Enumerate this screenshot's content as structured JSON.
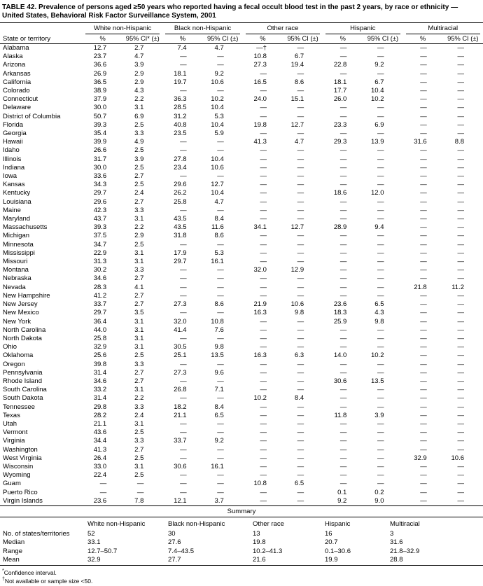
{
  "title": "TABLE 42. Prevalence of persons aged ≥50 years who reported having a fecal occult blood test in the past 2 years, by race or ethnicity — United States, Behavioral Risk Factor Surveillance System, 2001",
  "table": {
    "row_header": "State or territory",
    "groups": [
      {
        "label": "White non-Hispanic",
        "pct_header": "%",
        "ci_header": "95% CI* (±)"
      },
      {
        "label": "Black non-Hispanic",
        "pct_header": "%",
        "ci_header": "95% CI (±)"
      },
      {
        "label": "Other race",
        "pct_header": "%",
        "ci_header": "95% CI (±)"
      },
      {
        "label": "Hispanic",
        "pct_header": "%",
        "ci_header": "95% CI (±)"
      },
      {
        "label": "Multiracial",
        "pct_header": "%",
        "ci_header": "95% CI (±)"
      }
    ],
    "rows": [
      {
        "state": "Alabama",
        "values": [
          "12.7",
          "2.7",
          "7.4",
          "4.7",
          "—†",
          "—",
          "—",
          "—",
          "—",
          "—"
        ]
      },
      {
        "state": "Alaska",
        "values": [
          "23.7",
          "4.7",
          "—",
          "—",
          "10.8",
          "6.7",
          "—",
          "—",
          "—",
          "—"
        ]
      },
      {
        "state": "Arizona",
        "values": [
          "36.6",
          "3.9",
          "—",
          "—",
          "27.3",
          "19.4",
          "22.8",
          "9.2",
          "—",
          "—"
        ]
      },
      {
        "state": "Arkansas",
        "values": [
          "26.9",
          "2.9",
          "18.1",
          "9.2",
          "—",
          "—",
          "—",
          "—",
          "—",
          "—"
        ]
      },
      {
        "state": "California",
        "values": [
          "36.5",
          "2.9",
          "19.7",
          "10.6",
          "16.5",
          "8.6",
          "18.1",
          "6.7",
          "—",
          "—"
        ]
      },
      {
        "state": "Colorado",
        "values": [
          "38.9",
          "4.3",
          "—",
          "—",
          "—",
          "—",
          "17.7",
          "10.4",
          "—",
          "—"
        ]
      },
      {
        "state": "Connecticut",
        "values": [
          "37.9",
          "2.2",
          "36.3",
          "10.2",
          "24.0",
          "15.1",
          "26.0",
          "10.2",
          "—",
          "—"
        ]
      },
      {
        "state": "Delaware",
        "values": [
          "30.0",
          "3.1",
          "28.5",
          "10.4",
          "—",
          "—",
          "—",
          "—",
          "—",
          "—"
        ]
      },
      {
        "state": "District of Columbia",
        "values": [
          "50.7",
          "6.9",
          "31.2",
          "5.3",
          "—",
          "—",
          "—",
          "—",
          "—",
          "—"
        ]
      },
      {
        "state": "Florida",
        "values": [
          "39.3",
          "2.5",
          "40.8",
          "10.4",
          "19.8",
          "12.7",
          "23.3",
          "6.9",
          "—",
          "—"
        ]
      },
      {
        "state": "Georgia",
        "values": [
          "35.4",
          "3.3",
          "23.5",
          "5.9",
          "—",
          "—",
          "—",
          "—",
          "—",
          "—"
        ]
      },
      {
        "state": "Hawaii",
        "values": [
          "39.9",
          "4.9",
          "—",
          "—",
          "41.3",
          "4.7",
          "29.3",
          "13.9",
          "31.6",
          "8.8"
        ]
      },
      {
        "state": "Idaho",
        "values": [
          "26.6",
          "2.5",
          "—",
          "—",
          "—",
          "—",
          "—",
          "—",
          "—",
          "—"
        ]
      },
      {
        "state": "Illinois",
        "values": [
          "31.7",
          "3.9",
          "27.8",
          "10.4",
          "—",
          "—",
          "—",
          "—",
          "—",
          "—"
        ]
      },
      {
        "state": "Indiana",
        "values": [
          "30.0",
          "2.5",
          "23.4",
          "10.6",
          "—",
          "—",
          "—",
          "—",
          "—",
          "—"
        ]
      },
      {
        "state": "Iowa",
        "values": [
          "33.6",
          "2.7",
          "—",
          "—",
          "—",
          "—",
          "—",
          "—",
          "—",
          "—"
        ]
      },
      {
        "state": "Kansas",
        "values": [
          "34.3",
          "2.5",
          "29.6",
          "12.7",
          "—",
          "—",
          "—",
          "—",
          "—",
          "—"
        ]
      },
      {
        "state": "Kentucky",
        "values": [
          "29.7",
          "2.4",
          "26.2",
          "10.4",
          "—",
          "—",
          "18.6",
          "12.0",
          "—",
          "—"
        ]
      },
      {
        "state": "Louisiana",
        "values": [
          "29.6",
          "2.7",
          "25.8",
          "4.7",
          "—",
          "—",
          "—",
          "—",
          "—",
          "—"
        ]
      },
      {
        "state": "Maine",
        "values": [
          "42.3",
          "3.3",
          "—",
          "—",
          "—",
          "—",
          "—",
          "—",
          "—",
          "—"
        ]
      },
      {
        "state": "Maryland",
        "values": [
          "43.7",
          "3.1",
          "43.5",
          "8.4",
          "—",
          "—",
          "—",
          "—",
          "—",
          "—"
        ]
      },
      {
        "state": "Massachusetts",
        "values": [
          "39.3",
          "2.2",
          "43.5",
          "11.6",
          "34.1",
          "12.7",
          "28.9",
          "9.4",
          "—",
          "—"
        ]
      },
      {
        "state": "Michigan",
        "values": [
          "37.5",
          "2.9",
          "31.8",
          "8.6",
          "—",
          "—",
          "—",
          "—",
          "—",
          "—"
        ]
      },
      {
        "state": "Minnesota",
        "values": [
          "34.7",
          "2.5",
          "—",
          "—",
          "—",
          "—",
          "—",
          "—",
          "—",
          "—"
        ]
      },
      {
        "state": "Mississippi",
        "values": [
          "22.9",
          "3.1",
          "17.9",
          "5.3",
          "—",
          "—",
          "—",
          "—",
          "—",
          "—"
        ]
      },
      {
        "state": "Missouri",
        "values": [
          "31.3",
          "3.1",
          "29.7",
          "16.1",
          "—",
          "—",
          "—",
          "—",
          "—",
          "—"
        ]
      },
      {
        "state": "Montana",
        "values": [
          "30.2",
          "3.3",
          "—",
          "—",
          "32.0",
          "12.9",
          "—",
          "—",
          "—",
          "—"
        ]
      },
      {
        "state": "Nebraska",
        "values": [
          "34.6",
          "2.7",
          "—",
          "—",
          "—",
          "—",
          "—",
          "—",
          "—",
          "—"
        ]
      },
      {
        "state": "Nevada",
        "values": [
          "28.3",
          "4.1",
          "—",
          "—",
          "—",
          "—",
          "—",
          "—",
          "21.8",
          "11.2"
        ]
      },
      {
        "state": "New Hampshire",
        "values": [
          "41.2",
          "2.7",
          "—",
          "—",
          "—",
          "—",
          "—",
          "—",
          "—",
          "—"
        ]
      },
      {
        "state": "New Jersey",
        "values": [
          "33.7",
          "2.7",
          "27.3",
          "8.6",
          "21.9",
          "10.6",
          "23.6",
          "6.5",
          "—",
          "—"
        ]
      },
      {
        "state": "New Mexico",
        "values": [
          "29.7",
          "3.5",
          "—",
          "—",
          "16.3",
          "9.8",
          "18.3",
          "4.3",
          "—",
          "—"
        ]
      },
      {
        "state": "New York",
        "values": [
          "36.4",
          "3.1",
          "32.0",
          "10.8",
          "—",
          "—",
          "25.9",
          "9.8",
          "—",
          "—"
        ]
      },
      {
        "state": "North Carolina",
        "values": [
          "44.0",
          "3.1",
          "41.4",
          "7.6",
          "—",
          "—",
          "—",
          "—",
          "—",
          "—"
        ]
      },
      {
        "state": "North Dakota",
        "values": [
          "25.8",
          "3.1",
          "—",
          "—",
          "—",
          "—",
          "—",
          "—",
          "—",
          "—"
        ]
      },
      {
        "state": "Ohio",
        "values": [
          "32.9",
          "3.1",
          "30.5",
          "9.8",
          "—",
          "—",
          "—",
          "—",
          "—",
          "—"
        ]
      },
      {
        "state": "Oklahoma",
        "values": [
          "25.6",
          "2.5",
          "25.1",
          "13.5",
          "16.3",
          "6.3",
          "14.0",
          "10.2",
          "—",
          "—"
        ]
      },
      {
        "state": "Oregon",
        "values": [
          "39.8",
          "3.3",
          "—",
          "—",
          "—",
          "—",
          "—",
          "—",
          "—",
          "—"
        ]
      },
      {
        "state": "Pennsylvania",
        "values": [
          "31.4",
          "2.7",
          "27.3",
          "9.6",
          "—",
          "—",
          "—",
          "—",
          "—",
          "—"
        ]
      },
      {
        "state": "Rhode Island",
        "values": [
          "34.6",
          "2.7",
          "—",
          "—",
          "—",
          "—",
          "30.6",
          "13.5",
          "—",
          "—"
        ]
      },
      {
        "state": "South Carolina",
        "values": [
          "33.2",
          "3.1",
          "26.8",
          "7.1",
          "—",
          "—",
          "—",
          "—",
          "—",
          "—"
        ]
      },
      {
        "state": "South Dakota",
        "values": [
          "31.4",
          "2.2",
          "—",
          "—",
          "10.2",
          "8.4",
          "—",
          "—",
          "—",
          "—"
        ]
      },
      {
        "state": "Tennessee",
        "values": [
          "29.8",
          "3.3",
          "18.2",
          "8.4",
          "—",
          "—",
          "—",
          "—",
          "—",
          "—"
        ]
      },
      {
        "state": "Texas",
        "values": [
          "28.2",
          "2.4",
          "21.1",
          "6.5",
          "—",
          "—",
          "11.8",
          "3.9",
          "—",
          "—"
        ]
      },
      {
        "state": "Utah",
        "values": [
          "21.1",
          "3.1",
          "—",
          "—",
          "—",
          "—",
          "—",
          "—",
          "—",
          "—"
        ]
      },
      {
        "state": "Vermont",
        "values": [
          "43.6",
          "2.5",
          "—",
          "—",
          "—",
          "—",
          "—",
          "—",
          "—",
          "—"
        ]
      },
      {
        "state": "Virginia",
        "values": [
          "34.4",
          "3.3",
          "33.7",
          "9.2",
          "—",
          "—",
          "—",
          "—",
          "—",
          "—"
        ]
      },
      {
        "state": "Washington",
        "values": [
          "41.3",
          "2.7",
          "—",
          "—",
          "—",
          "—",
          "—",
          "—",
          "—",
          "—"
        ]
      },
      {
        "state": "West Virginia",
        "values": [
          "26.4",
          "2.5",
          "—",
          "—",
          "—",
          "—",
          "—",
          "—",
          "32.9",
          "10.6"
        ]
      },
      {
        "state": "Wisconsin",
        "values": [
          "33.0",
          "3.1",
          "30.6",
          "16.1",
          "—",
          "—",
          "—",
          "—",
          "—",
          "—"
        ]
      },
      {
        "state": "Wyoming",
        "values": [
          "22.4",
          "2.5",
          "—",
          "—",
          "—",
          "—",
          "—",
          "—",
          "—",
          "—"
        ]
      },
      {
        "state": "Guam",
        "values": [
          "—",
          "—",
          "—",
          "—",
          "10.8",
          "6.5",
          "—",
          "—",
          "—",
          "—"
        ]
      },
      {
        "state": "Puerto Rico",
        "values": [
          "—",
          "—",
          "—",
          "—",
          "—",
          "—",
          "0.1",
          "0.2",
          "—",
          "—"
        ]
      },
      {
        "state": "Virgin Islands",
        "values": [
          "23.6",
          "7.8",
          "12.1",
          "3.7",
          "—",
          "—",
          "9.2",
          "9.0",
          "—",
          "—"
        ]
      }
    ]
  },
  "summary": {
    "title": "Summary",
    "columns": [
      "White non-Hispanic",
      "Black non-Hispanic",
      "Other race",
      "Hispanic",
      "Multiracial"
    ],
    "rows": [
      {
        "label": "No. of states/territories",
        "values": [
          "52",
          "30",
          "13",
          "16",
          "3"
        ]
      },
      {
        "label": "Median",
        "values": [
          "33.1",
          "27.6",
          "19.8",
          "20.7",
          "31.6"
        ]
      },
      {
        "label": "Range",
        "values": [
          "12.7–50.7",
          "7.4–43.5",
          "10.2–41.3",
          "0.1–30.6",
          "21.8–32.9"
        ]
      },
      {
        "label": "Mean",
        "values": [
          "32.9",
          "27.7",
          "21.6",
          "19.9",
          "28.8"
        ]
      }
    ]
  },
  "footnotes": [
    {
      "marker": "*",
      "text": "Confidence interval."
    },
    {
      "marker": "†",
      "text": "Not available or sample size <50."
    }
  ]
}
